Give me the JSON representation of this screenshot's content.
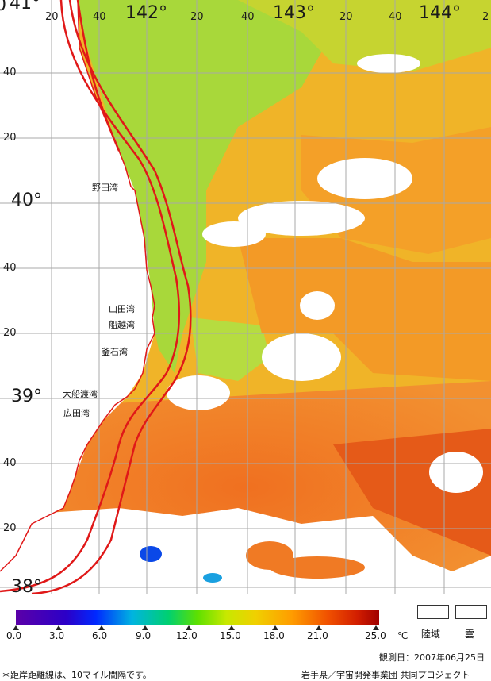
{
  "map": {
    "longitude_labels": {
      "deg_141": "41°",
      "m20_a": "20",
      "m40_a": "40",
      "deg_142": "142°",
      "m20_b": "20",
      "m40_b": "40",
      "deg_143": "143°",
      "m20_c": "20",
      "m40_c": "40",
      "deg_144": "144°",
      "m20_d": "2",
      "left_edge": "0"
    },
    "latitude_labels": {
      "m40_a": "40",
      "m20_a": "20",
      "deg_40": "40°",
      "m40_b": "40",
      "m20_b": "20",
      "deg_39": "39°",
      "m40_c": "40",
      "m20_c": "20",
      "deg_38": "38°"
    },
    "bays": {
      "noda": "野田湾",
      "yamada": "山田湾",
      "funakoshi": "船越湾",
      "kamaishi": "釜石湾",
      "ofunato": "大船渡湾",
      "hirota": "広田湾"
    },
    "colors": {
      "land": "#ffffff",
      "cloud": "#ffffff",
      "grid": "#a8a8a8",
      "distance_line": "#e01818"
    }
  },
  "legend": {
    "ticks": [
      "0.0",
      "3.0",
      "6.0",
      "9.0",
      "12.0",
      "15.0",
      "18.0",
      "21.0",
      "25.0"
    ],
    "unit": "℃",
    "land_label": "陸域",
    "cloud_label": "雲",
    "observation_date": "観測日：2007年06月25日",
    "footnote": "＊距岸距離線は、10マイル間隔です。",
    "credit": "岩手県／宇宙開発事業団 共同プロジェクト"
  }
}
